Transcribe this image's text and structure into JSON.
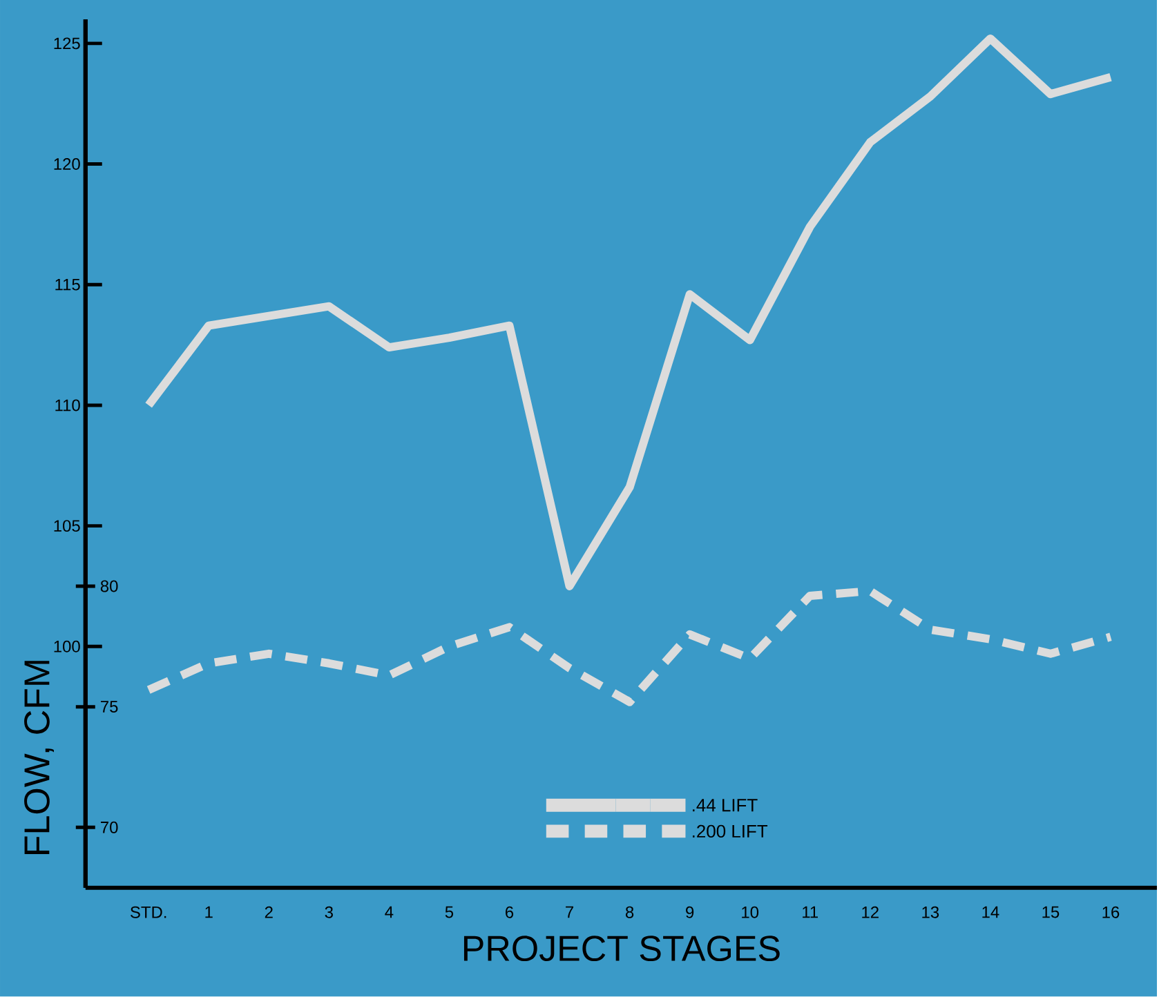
{
  "chart_data": {
    "type": "line",
    "xlabel": "PROJECT STAGES",
    "ylabel": "FLOW, CFM",
    "categories": [
      "STD.",
      "1",
      "2",
      "3",
      "4",
      "5",
      "6",
      "7",
      "8",
      "9",
      "10",
      "11",
      "12",
      "13",
      "14",
      "15",
      "16"
    ],
    "series": [
      {
        "name": ".44 LIFT",
        "color": "#dcdcdc",
        "line_style": "solid",
        "values": [
          110.0,
          113.3,
          113.7,
          114.1,
          112.4,
          112.8,
          113.3,
          102.5,
          106.6,
          114.6,
          112.7,
          117.4,
          120.9,
          122.8,
          125.2,
          122.9,
          123.6
        ]
      },
      {
        "name": ".200 LIFT",
        "color": "#dcdcdc",
        "line_style": "dashed",
        "axis": "y2",
        "values": [
          75.7,
          76.8,
          77.2,
          76.8,
          76.3,
          77.5,
          78.3,
          76.6,
          75.2,
          78.0,
          77.0,
          79.6,
          79.8,
          78.2,
          77.8,
          77.2,
          77.9
        ]
      }
    ],
    "ylim": [
      90,
      126
    ],
    "yticks": [
      100,
      105,
      110,
      115,
      120,
      125
    ],
    "y2lim": [
      67.5,
      103.5
    ],
    "y2ticks": [
      70,
      75,
      80
    ],
    "legend": "bottom",
    "grid": false,
    "marker": "none"
  }
}
